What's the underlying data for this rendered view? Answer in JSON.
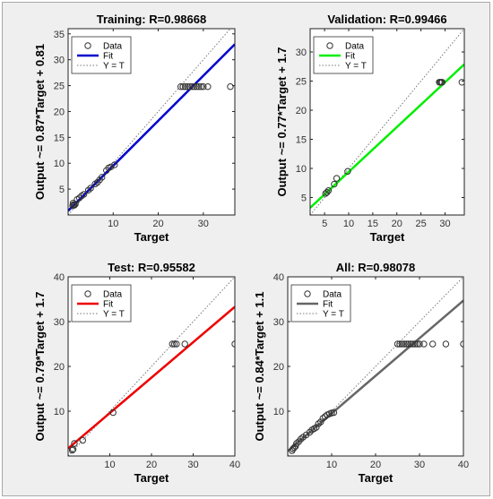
{
  "chart_data": [
    {
      "type": "scatter",
      "title": "Training: R=0.98668",
      "xlabel": "Target",
      "ylabel": "Output ~= 0.87*Target + 0.81",
      "xlim": [
        0,
        37
      ],
      "ylim": [
        0,
        36
      ],
      "xticks": [
        10,
        20,
        30
      ],
      "yticks": [
        5,
        10,
        15,
        20,
        25,
        30,
        35
      ],
      "fit": {
        "slope": 0.87,
        "intercept": 0.81,
        "color": "#0000cc"
      },
      "legend": [
        "Data",
        "Fit",
        "Y = T"
      ],
      "points": [
        [
          1,
          1.8
        ],
        [
          1.2,
          2
        ],
        [
          1.4,
          1.9
        ],
        [
          1.6,
          2.1
        ],
        [
          1.1,
          2.3
        ],
        [
          2,
          3
        ],
        [
          2.5,
          3.3
        ],
        [
          3,
          3.7
        ],
        [
          3.5,
          4
        ],
        [
          4.5,
          4.8
        ],
        [
          5,
          5.2
        ],
        [
          6,
          6
        ],
        [
          6.5,
          6.3
        ],
        [
          7,
          6.8
        ],
        [
          7.5,
          7.3
        ],
        [
          8.5,
          8.6
        ],
        [
          9,
          9.1
        ],
        [
          9.5,
          9.3
        ],
        [
          10.3,
          9.7
        ],
        [
          25,
          24.8
        ],
        [
          25.5,
          24.8
        ],
        [
          26,
          24.8
        ],
        [
          26.5,
          24.8
        ],
        [
          27,
          24.8
        ],
        [
          27.5,
          24.8
        ],
        [
          28,
          24.8
        ],
        [
          28.5,
          24.8
        ],
        [
          29,
          24.8
        ],
        [
          29.5,
          24.8
        ],
        [
          30,
          24.8
        ],
        [
          31,
          24.8
        ],
        [
          36,
          24.8
        ]
      ]
    },
    {
      "type": "scatter",
      "title": "Validation: R=0.99466",
      "xlabel": "Target",
      "ylabel": "Output ~= 0.77*Target + 1.7",
      "xlim": [
        2,
        34
      ],
      "ylim": [
        2,
        34
      ],
      "xticks": [
        5,
        10,
        15,
        20,
        25,
        30
      ],
      "yticks": [
        5,
        10,
        15,
        20,
        25,
        30
      ],
      "fit": {
        "slope": 0.77,
        "intercept": 1.7,
        "color": "#00ee00"
      },
      "legend": [
        "Data",
        "Fit",
        "Y = T"
      ],
      "points": [
        [
          5.2,
          5.7
        ],
        [
          5.5,
          5.9
        ],
        [
          5.8,
          6.2
        ],
        [
          7,
          7.3
        ],
        [
          7.5,
          8.3
        ],
        [
          9.8,
          9.5
        ],
        [
          28.8,
          24.8
        ],
        [
          29,
          24.8
        ],
        [
          29.2,
          24.8
        ],
        [
          29.4,
          24.8
        ],
        [
          33.5,
          24.8
        ]
      ]
    },
    {
      "type": "scatter",
      "title": "Test: R=0.95582",
      "xlabel": "Target",
      "ylabel": "Output ~= 0.79*Target + 1.7",
      "xlim": [
        0,
        40
      ],
      "ylim": [
        0,
        40
      ],
      "xticks": [
        10,
        20,
        30,
        40
      ],
      "yticks": [
        10,
        20,
        30,
        40
      ],
      "fit": {
        "slope": 0.79,
        "intercept": 1.7,
        "color": "#ee0000"
      },
      "legend": [
        "Data",
        "Fit",
        "Y = T"
      ],
      "points": [
        [
          1,
          1.3
        ],
        [
          1.2,
          1.5
        ],
        [
          1.5,
          2.8
        ],
        [
          3.5,
          3.5
        ],
        [
          10.8,
          9.7
        ],
        [
          25,
          25
        ],
        [
          25.5,
          25
        ],
        [
          26,
          25
        ],
        [
          28,
          25
        ],
        [
          40,
          25
        ]
      ]
    },
    {
      "type": "scatter",
      "title": "All: R=0.98078",
      "xlabel": "Target",
      "ylabel": "Output ~= 0.84*Target + 1.1",
      "xlim": [
        0,
        40
      ],
      "ylim": [
        0,
        40
      ],
      "xticks": [
        10,
        20,
        30,
        40
      ],
      "yticks": [
        10,
        20,
        30,
        40
      ],
      "fit": {
        "slope": 0.84,
        "intercept": 1.1,
        "color": "#666666"
      },
      "legend": [
        "Data",
        "Fit",
        "Y = T"
      ],
      "points": [
        [
          1,
          1.2
        ],
        [
          1.2,
          1.6
        ],
        [
          1.5,
          1.9
        ],
        [
          1.8,
          2.2
        ],
        [
          2,
          2.8
        ],
        [
          2.5,
          3.2
        ],
        [
          3,
          3.8
        ],
        [
          3.5,
          4.2
        ],
        [
          4.2,
          4.7
        ],
        [
          5,
          5.3
        ],
        [
          5.5,
          5.8
        ],
        [
          6,
          6.1
        ],
        [
          6.5,
          6.4
        ],
        [
          7,
          7.2
        ],
        [
          7.5,
          7.6
        ],
        [
          8,
          8.4
        ],
        [
          8.5,
          8.8
        ],
        [
          9,
          9.2
        ],
        [
          9.5,
          9.4
        ],
        [
          10,
          9.6
        ],
        [
          10.5,
          9.7
        ],
        [
          25,
          25
        ],
        [
          25.5,
          25
        ],
        [
          26,
          25
        ],
        [
          26.5,
          25
        ],
        [
          27,
          25
        ],
        [
          27.5,
          25
        ],
        [
          28,
          25
        ],
        [
          28.5,
          25
        ],
        [
          29,
          25
        ],
        [
          29.5,
          25
        ],
        [
          30,
          25
        ],
        [
          31,
          25
        ],
        [
          33,
          25
        ],
        [
          36,
          25
        ],
        [
          40,
          25
        ]
      ]
    }
  ]
}
